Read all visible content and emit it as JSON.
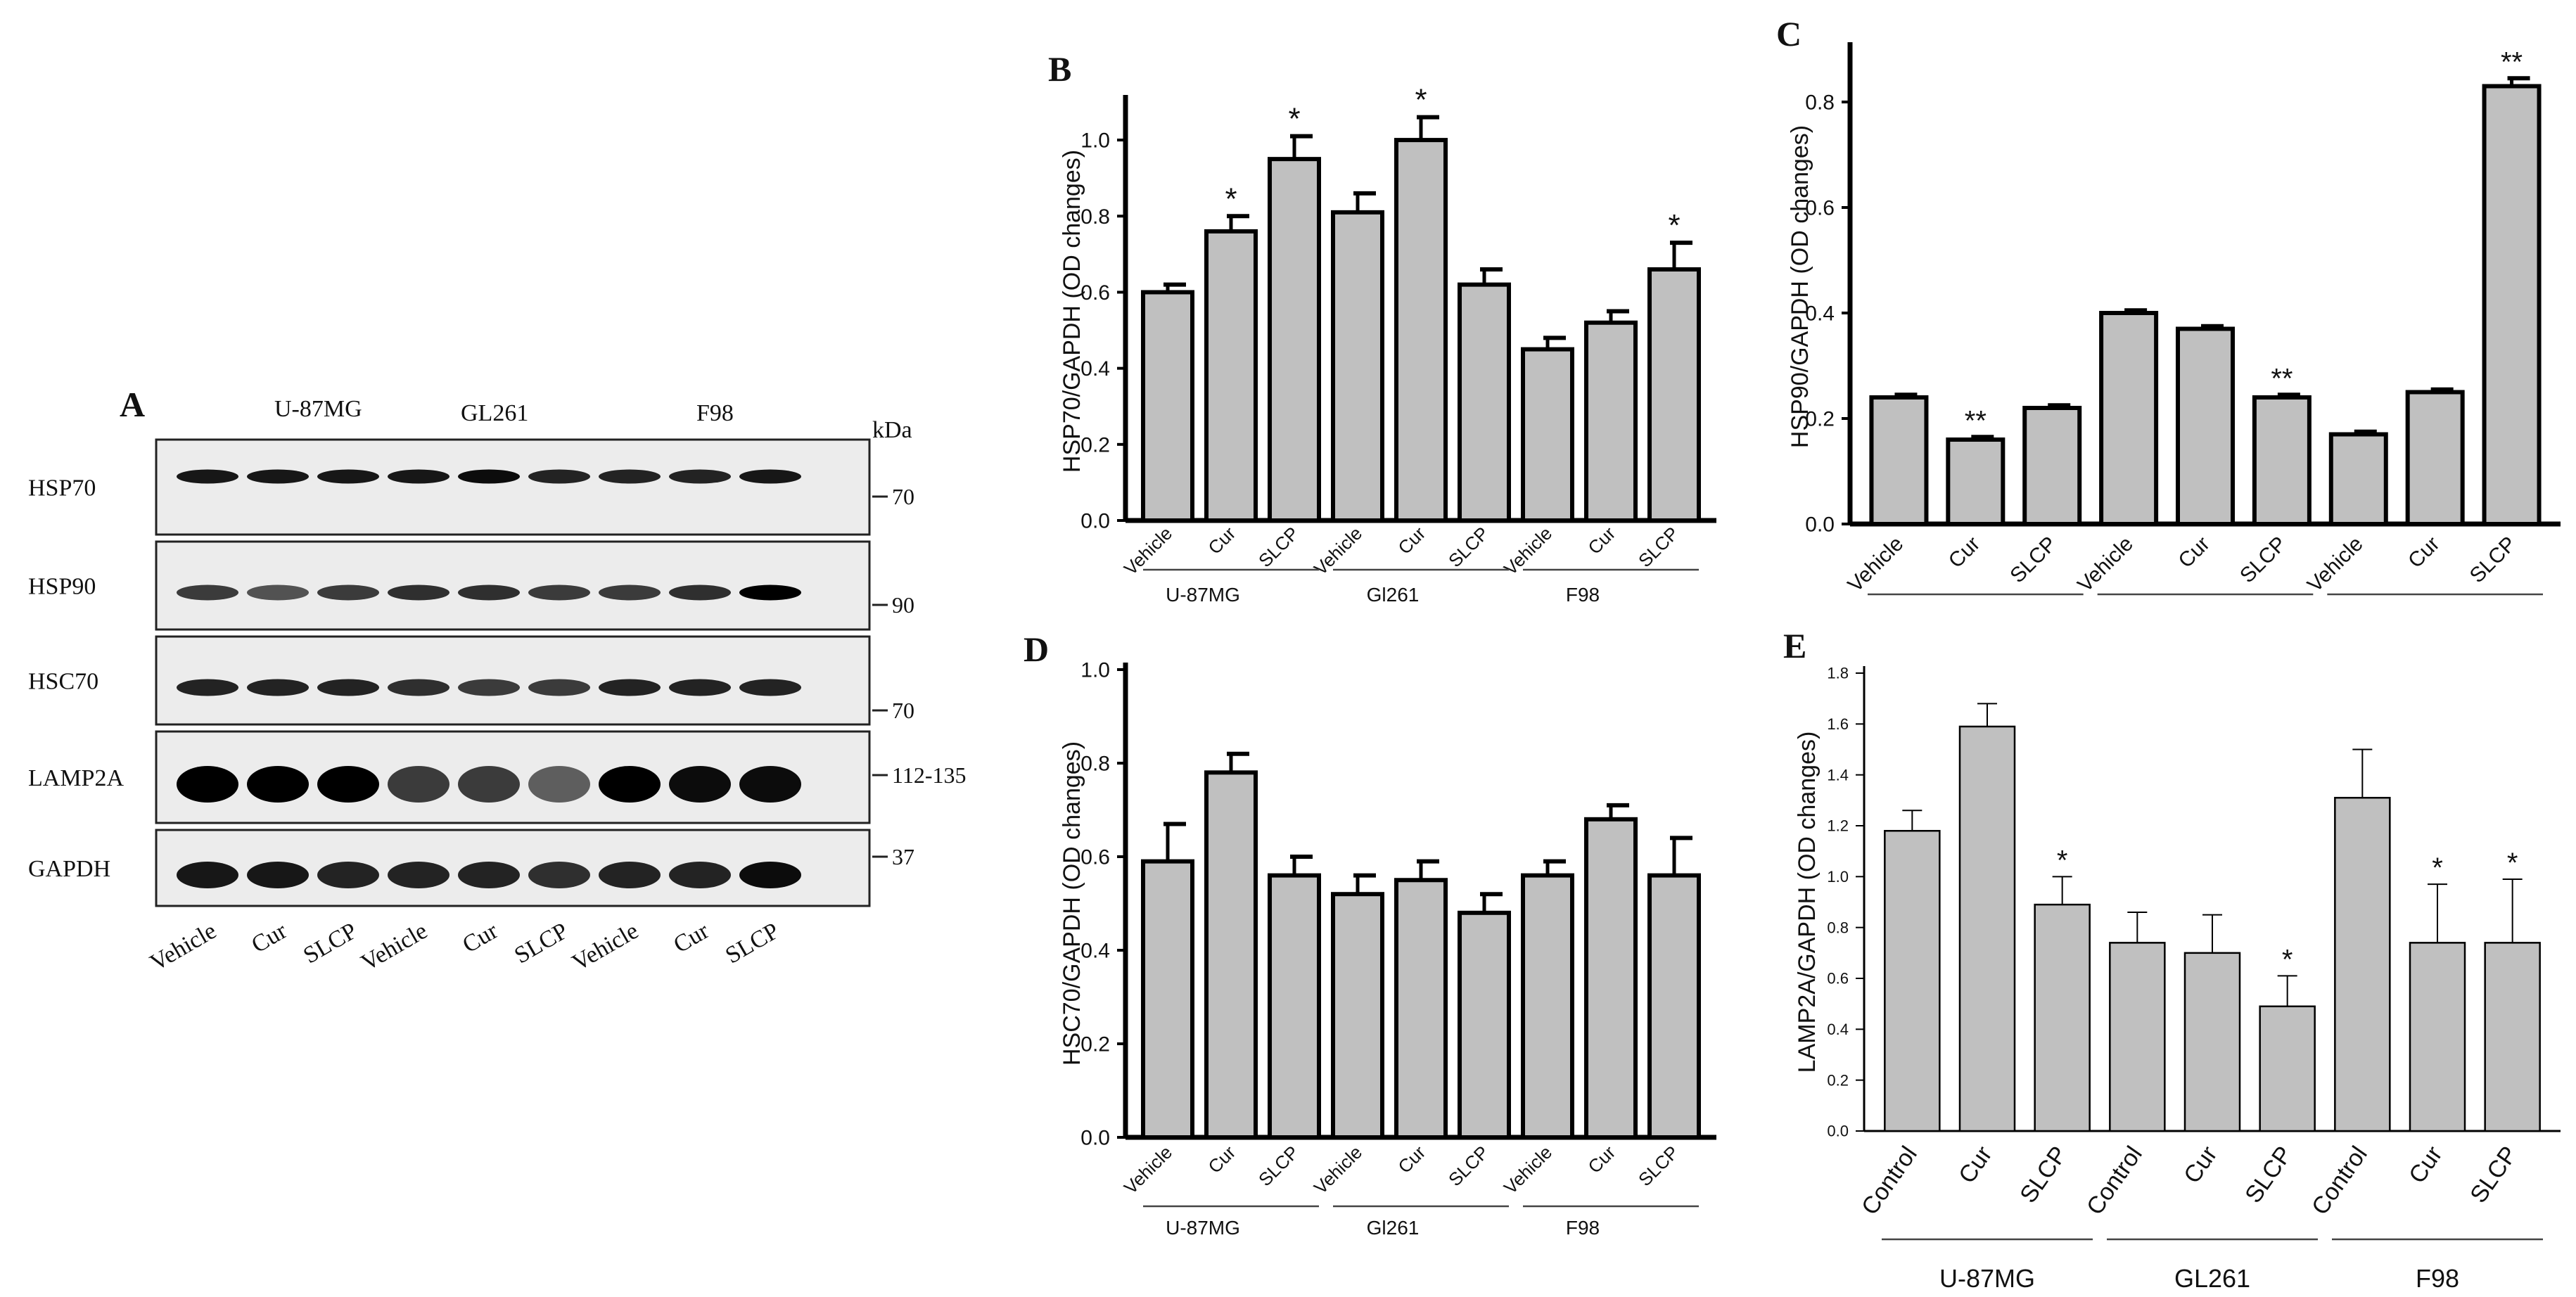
{
  "panel_a": {
    "letter": "A",
    "groups": [
      "U-87MG",
      "GL261",
      "F98"
    ],
    "kda_label": "kDa",
    "blots": [
      {
        "name": "HSP70",
        "marker": "70"
      },
      {
        "name": "HSP90",
        "marker": "90"
      },
      {
        "name": "HSC70",
        "marker": "70"
      },
      {
        "name": "LAMP2A",
        "marker": "112-135"
      },
      {
        "name": "GAPDH",
        "marker": "37"
      }
    ],
    "lanes": [
      "Vehicle",
      "Cur",
      "SLCP",
      "Vehicle",
      "Cur",
      "SLCP",
      "Vehicle",
      "Cur",
      "SLCP"
    ]
  },
  "chart_data": [
    {
      "panel": "B",
      "type": "bar",
      "ylabel": "HSP70/GAPDH (OD changes)",
      "ylim": [
        0,
        1.1
      ],
      "yticks": [
        "0.0",
        "0.2",
        "0.4",
        "0.6",
        "0.8",
        "1.0"
      ],
      "ytick_values": [
        0,
        0.2,
        0.4,
        0.6,
        0.8,
        1.0
      ],
      "categories": [
        "Vehicle",
        "Cur",
        "SLCP",
        "Vehicle",
        "Cur",
        "SLCP",
        "Vehicle",
        "Cur",
        "SLCP"
      ],
      "values": [
        0.6,
        0.76,
        0.95,
        0.81,
        1.0,
        0.62,
        0.45,
        0.52,
        0.66
      ],
      "errors": [
        0.02,
        0.04,
        0.06,
        0.05,
        0.06,
        0.04,
        0.03,
        0.03,
        0.07
      ],
      "annotations": [
        "",
        "*",
        "*",
        "",
        "*",
        "",
        "",
        "",
        "*"
      ],
      "groups": [
        "U-87MG",
        "Gl261",
        "F98"
      ]
    },
    {
      "panel": "C",
      "type": "bar",
      "ylabel": "HSP90/GAPDH (OD changes)",
      "ylim": [
        0,
        0.9
      ],
      "yticks": [
        "0.0",
        "0.2",
        "0.4",
        "0.6",
        "0.8"
      ],
      "ytick_values": [
        0,
        0.2,
        0.4,
        0.6,
        0.8
      ],
      "categories": [
        "Vehicle",
        "Cur",
        "SLCP",
        "Vehicle",
        "Cur",
        "SLCP",
        "Vehicle",
        "Cur",
        "SLCP"
      ],
      "values": [
        0.24,
        0.16,
        0.22,
        0.4,
        0.37,
        0.24,
        0.17,
        0.25,
        0.83
      ],
      "errors": [
        0.005,
        0.005,
        0.005,
        0.005,
        0.005,
        0.005,
        0.005,
        0.005,
        0.015
      ],
      "annotations": [
        "",
        "**",
        "",
        "",
        "",
        "**",
        "",
        "",
        "**"
      ],
      "groups": [
        "",
        "",
        ""
      ]
    },
    {
      "panel": "D",
      "type": "bar",
      "ylabel": "HSC70/GAPDH (OD changes)",
      "ylim": [
        0,
        1.0
      ],
      "yticks": [
        "0.0",
        "0.2",
        "0.4",
        "0.6",
        "0.8",
        "1.0"
      ],
      "ytick_values": [
        0,
        0.2,
        0.4,
        0.6,
        0.8,
        1.0
      ],
      "categories": [
        "Vehicle",
        "Cur",
        "SLCP",
        "Vehicle",
        "Cur",
        "SLCP",
        "Vehicle",
        "Cur",
        "SLCP"
      ],
      "values": [
        0.59,
        0.78,
        0.56,
        0.52,
        0.55,
        0.48,
        0.56,
        0.68,
        0.56
      ],
      "errors": [
        0.08,
        0.04,
        0.04,
        0.04,
        0.04,
        0.04,
        0.03,
        0.03,
        0.08
      ],
      "annotations": [
        "",
        "",
        "",
        "",
        "",
        "",
        "",
        "",
        ""
      ],
      "groups": [
        "U-87MG",
        "Gl261",
        "F98"
      ]
    },
    {
      "panel": "E",
      "type": "bar",
      "ylabel": "LAMP2A/GAPDH (OD changes)",
      "ylim": [
        0,
        1.8
      ],
      "yticks": [
        "0.0",
        "0.2",
        "0.4",
        "0.6",
        "0.8",
        "1.0",
        "1.2",
        "1.4",
        "1.6",
        "1.8"
      ],
      "ytick_values": [
        0,
        0.2,
        0.4,
        0.6,
        0.8,
        1.0,
        1.2,
        1.4,
        1.6,
        1.8
      ],
      "categories": [
        "Control",
        "Cur",
        "SLCP",
        "Control",
        "Cur",
        "SLCP",
        "Control",
        "Cur",
        "SLCP"
      ],
      "values": [
        1.18,
        1.59,
        0.89,
        0.74,
        0.7,
        0.49,
        1.31,
        0.74,
        0.74
      ],
      "errors": [
        0.08,
        0.09,
        0.11,
        0.12,
        0.15,
        0.12,
        0.19,
        0.23,
        0.25
      ],
      "annotations": [
        "",
        "",
        "*",
        "",
        "",
        "*",
        "",
        "*",
        "*"
      ],
      "groups": [
        "U-87MG",
        "GL261",
        "F98"
      ]
    }
  ]
}
